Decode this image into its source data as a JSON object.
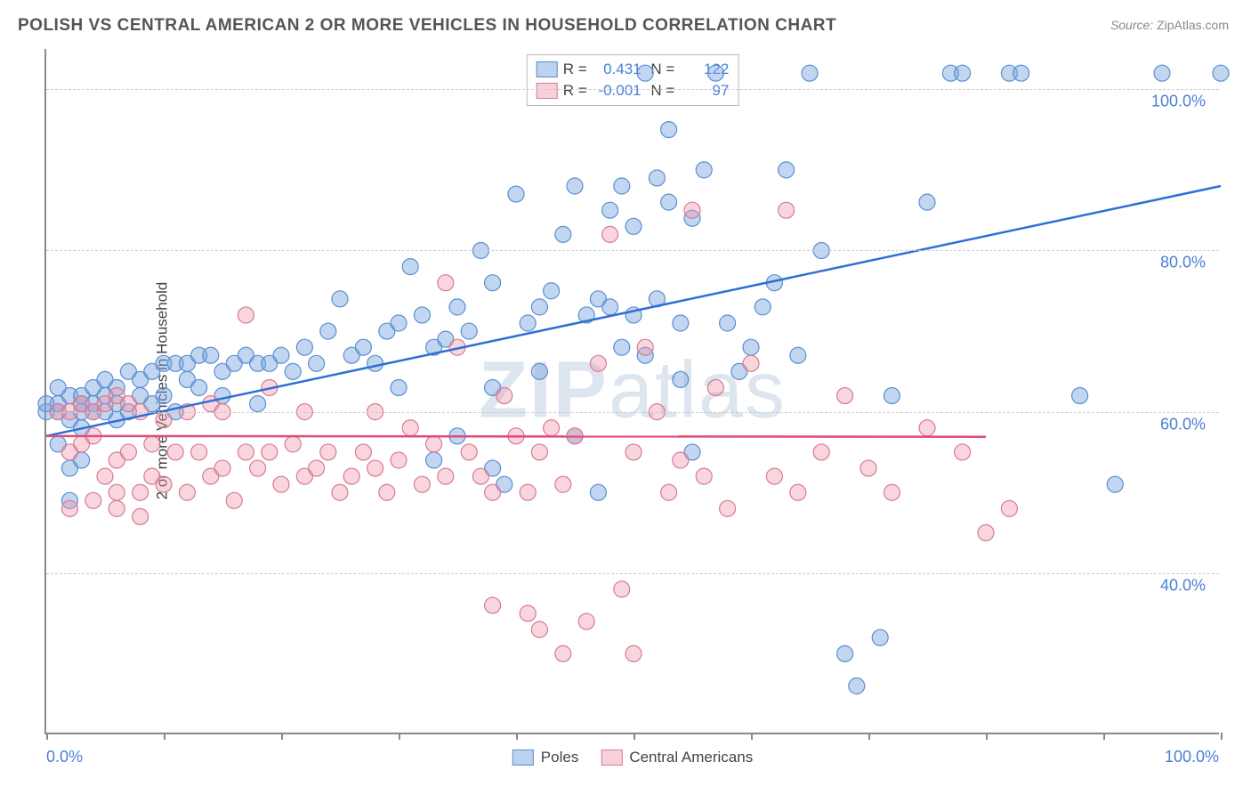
{
  "title": "POLISH VS CENTRAL AMERICAN 2 OR MORE VEHICLES IN HOUSEHOLD CORRELATION CHART",
  "source_label": "Source:",
  "source_value": "ZipAtlas.com",
  "y_axis_label": "2 or more Vehicles in Household",
  "watermark_bold": "ZIP",
  "watermark_rest": "atlas",
  "chart": {
    "type": "scatter",
    "xlim": [
      0,
      100
    ],
    "ylim": [
      20,
      105
    ],
    "x_ticks": [
      0,
      10,
      20,
      30,
      40,
      50,
      60,
      70,
      80,
      90,
      100
    ],
    "x_tick_labels": {
      "0": "0.0%",
      "100": "100.0%"
    },
    "y_gridlines": [
      40,
      60,
      80,
      100
    ],
    "y_tick_labels": {
      "40": "40.0%",
      "60": "60.0%",
      "80": "80.0%",
      "100": "100.0%"
    },
    "grid_color": "#cccccc",
    "background_color": "#ffffff",
    "axis_color": "#888888",
    "tick_label_color": "#4a7fd8",
    "series": [
      {
        "name": "Poles",
        "color_fill": "rgba(120,165,225,0.45)",
        "color_stroke": "#5a8fd0",
        "marker_radius": 9,
        "regression": {
          "R": "0.431",
          "N": "122",
          "x1": 0,
          "y1": 57,
          "x2": 100,
          "y2": 88,
          "stroke": "#2e6fd6",
          "width": 2.5
        },
        "points": [
          [
            1,
            60
          ],
          [
            1,
            61
          ],
          [
            2,
            62
          ],
          [
            2,
            59
          ],
          [
            2,
            53
          ],
          [
            3,
            60
          ],
          [
            3,
            61
          ],
          [
            3,
            58
          ],
          [
            3,
            62
          ],
          [
            4,
            61
          ],
          [
            4,
            60
          ],
          [
            4,
            63
          ],
          [
            5,
            60
          ],
          [
            5,
            62
          ],
          [
            5,
            64
          ],
          [
            6,
            61
          ],
          [
            6,
            59
          ],
          [
            6,
            63
          ],
          [
            7,
            65
          ],
          [
            7,
            60
          ],
          [
            8,
            64
          ],
          [
            8,
            62
          ],
          [
            9,
            65
          ],
          [
            9,
            61
          ],
          [
            10,
            66
          ],
          [
            10,
            62
          ],
          [
            11,
            66
          ],
          [
            11,
            60
          ],
          [
            12,
            66
          ],
          [
            12,
            64
          ],
          [
            13,
            67
          ],
          [
            13,
            63
          ],
          [
            14,
            67
          ],
          [
            15,
            65
          ],
          [
            15,
            62
          ],
          [
            16,
            66
          ],
          [
            17,
            67
          ],
          [
            18,
            66
          ],
          [
            18,
            61
          ],
          [
            19,
            66
          ],
          [
            20,
            67
          ],
          [
            21,
            65
          ],
          [
            22,
            68
          ],
          [
            23,
            66
          ],
          [
            24,
            70
          ],
          [
            25,
            74
          ],
          [
            26,
            67
          ],
          [
            27,
            68
          ],
          [
            28,
            66
          ],
          [
            29,
            70
          ],
          [
            30,
            71
          ],
          [
            30,
            63
          ],
          [
            31,
            78
          ],
          [
            32,
            72
          ],
          [
            33,
            68
          ],
          [
            33,
            54
          ],
          [
            34,
            69
          ],
          [
            35,
            73
          ],
          [
            35,
            57
          ],
          [
            36,
            70
          ],
          [
            37,
            80
          ],
          [
            38,
            76
          ],
          [
            38,
            63
          ],
          [
            38,
            53
          ],
          [
            39,
            51
          ],
          [
            40,
            87
          ],
          [
            41,
            71
          ],
          [
            42,
            73
          ],
          [
            42,
            65
          ],
          [
            43,
            75
          ],
          [
            44,
            82
          ],
          [
            45,
            88
          ],
          [
            45,
            57
          ],
          [
            46,
            72
          ],
          [
            47,
            74
          ],
          [
            47,
            50
          ],
          [
            48,
            73
          ],
          [
            48,
            85
          ],
          [
            49,
            88
          ],
          [
            49,
            68
          ],
          [
            50,
            83
          ],
          [
            50,
            72
          ],
          [
            51,
            102
          ],
          [
            51,
            67
          ],
          [
            52,
            89
          ],
          [
            52,
            74
          ],
          [
            53,
            86
          ],
          [
            53,
            95
          ],
          [
            54,
            71
          ],
          [
            54,
            64
          ],
          [
            55,
            84
          ],
          [
            55,
            55
          ],
          [
            56,
            90
          ],
          [
            57,
            102
          ],
          [
            58,
            71
          ],
          [
            59,
            65
          ],
          [
            60,
            68
          ],
          [
            61,
            73
          ],
          [
            62,
            76
          ],
          [
            63,
            90
          ],
          [
            64,
            67
          ],
          [
            65,
            102
          ],
          [
            66,
            80
          ],
          [
            68,
            30
          ],
          [
            69,
            26
          ],
          [
            71,
            32
          ],
          [
            72,
            62
          ],
          [
            75,
            86
          ],
          [
            77,
            102
          ],
          [
            78,
            102
          ],
          [
            82,
            102
          ],
          [
            83,
            102
          ],
          [
            88,
            62
          ],
          [
            91,
            51
          ],
          [
            95,
            102
          ],
          [
            100,
            102
          ],
          [
            2,
            49
          ],
          [
            3,
            54
          ],
          [
            1,
            56
          ],
          [
            0,
            60
          ],
          [
            0,
            61
          ],
          [
            1,
            63
          ]
        ]
      },
      {
        "name": "Central Americans",
        "color_fill": "rgba(240,150,170,0.40)",
        "color_stroke": "#d87a95",
        "marker_radius": 9,
        "regression": {
          "R": "-0.001",
          "N": "97",
          "x1": 0,
          "y1": 57,
          "x2": 80,
          "y2": 56.9,
          "stroke": "#e04b7a",
          "width": 2.5
        },
        "points": [
          [
            1,
            60
          ],
          [
            2,
            60
          ],
          [
            2,
            55
          ],
          [
            3,
            61
          ],
          [
            3,
            56
          ],
          [
            4,
            60
          ],
          [
            4,
            57
          ],
          [
            5,
            61
          ],
          [
            5,
            52
          ],
          [
            6,
            62
          ],
          [
            6,
            54
          ],
          [
            6,
            50
          ],
          [
            7,
            55
          ],
          [
            7,
            61
          ],
          [
            8,
            60
          ],
          [
            8,
            50
          ],
          [
            9,
            56
          ],
          [
            9,
            52
          ],
          [
            10,
            59
          ],
          [
            10,
            51
          ],
          [
            11,
            55
          ],
          [
            12,
            60
          ],
          [
            12,
            50
          ],
          [
            13,
            55
          ],
          [
            14,
            52
          ],
          [
            14,
            61
          ],
          [
            15,
            53
          ],
          [
            15,
            60
          ],
          [
            16,
            49
          ],
          [
            17,
            55
          ],
          [
            17,
            72
          ],
          [
            18,
            53
          ],
          [
            19,
            55
          ],
          [
            19,
            63
          ],
          [
            20,
            51
          ],
          [
            21,
            56
          ],
          [
            22,
            52
          ],
          [
            22,
            60
          ],
          [
            23,
            53
          ],
          [
            24,
            55
          ],
          [
            25,
            50
          ],
          [
            26,
            52
          ],
          [
            27,
            55
          ],
          [
            28,
            53
          ],
          [
            28,
            60
          ],
          [
            29,
            50
          ],
          [
            30,
            54
          ],
          [
            31,
            58
          ],
          [
            32,
            51
          ],
          [
            33,
            56
          ],
          [
            34,
            52
          ],
          [
            34,
            76
          ],
          [
            35,
            68
          ],
          [
            36,
            55
          ],
          [
            37,
            52
          ],
          [
            38,
            50
          ],
          [
            38,
            36
          ],
          [
            39,
            62
          ],
          [
            40,
            57
          ],
          [
            41,
            50
          ],
          [
            41,
            35
          ],
          [
            42,
            55
          ],
          [
            42,
            33
          ],
          [
            43,
            58
          ],
          [
            44,
            51
          ],
          [
            44,
            30
          ],
          [
            45,
            57
          ],
          [
            46,
            34
          ],
          [
            47,
            66
          ],
          [
            48,
            82
          ],
          [
            49,
            38
          ],
          [
            50,
            55
          ],
          [
            50,
            30
          ],
          [
            51,
            68
          ],
          [
            52,
            60
          ],
          [
            53,
            50
          ],
          [
            54,
            54
          ],
          [
            55,
            85
          ],
          [
            56,
            52
          ],
          [
            57,
            63
          ],
          [
            58,
            48
          ],
          [
            60,
            66
          ],
          [
            62,
            52
          ],
          [
            63,
            85
          ],
          [
            64,
            50
          ],
          [
            66,
            55
          ],
          [
            68,
            62
          ],
          [
            70,
            53
          ],
          [
            72,
            50
          ],
          [
            75,
            58
          ],
          [
            78,
            55
          ],
          [
            80,
            45
          ],
          [
            82,
            48
          ],
          [
            2,
            48
          ],
          [
            4,
            49
          ],
          [
            6,
            48
          ],
          [
            8,
            47
          ]
        ]
      }
    ]
  },
  "legend_bottom": [
    {
      "swatch": "blue",
      "label": "Poles"
    },
    {
      "swatch": "pink",
      "label": "Central Americans"
    }
  ]
}
